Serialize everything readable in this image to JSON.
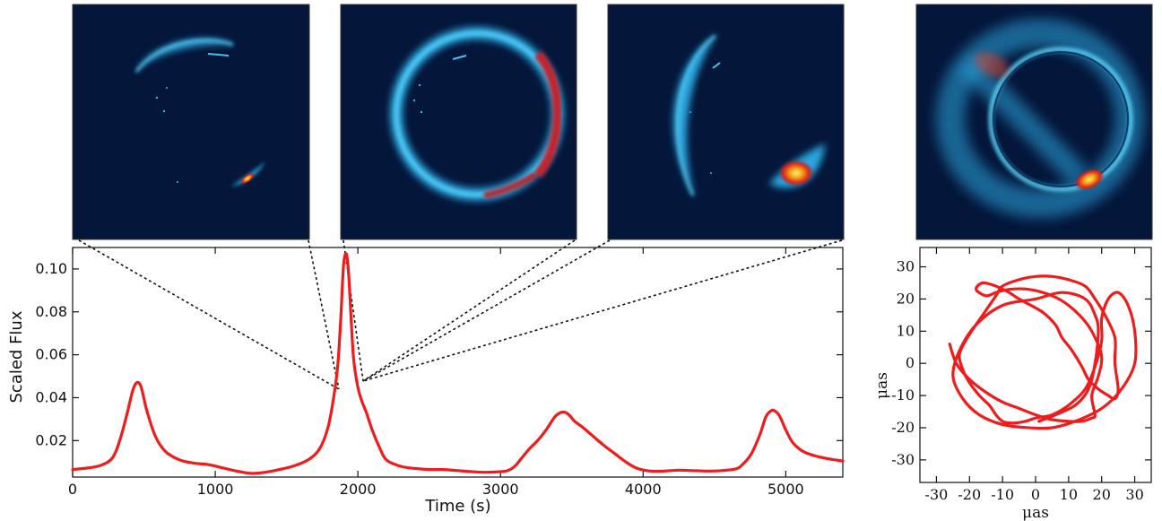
{
  "chart_data": [
    {
      "type": "line",
      "title": "",
      "xlabel": "Time (s)",
      "ylabel": "Scaled Flux",
      "xlim": [
        0,
        5400
      ],
      "ylim": [
        0.003,
        0.11
      ],
      "xticks": [
        0,
        1000,
        2000,
        3000,
        4000,
        5000
      ],
      "xtick_labels": [
        "0",
        "1000",
        "2000",
        "3000",
        "4000",
        "5000"
      ],
      "yticks": [
        0.02,
        0.04,
        0.06,
        0.08,
        0.1
      ],
      "ytick_labels": [
        "0.02",
        "0.04",
        "0.06",
        "0.08",
        "0.10"
      ],
      "grid": false,
      "series": [
        {
          "color": "#ee1c1c",
          "x": [
            0,
            100,
            200,
            280,
            330,
            380,
            420,
            450,
            480,
            520,
            580,
            650,
            750,
            850,
            950,
            1050,
            1150,
            1250,
            1350,
            1450,
            1550,
            1650,
            1730,
            1790,
            1830,
            1860,
            1880,
            1900,
            1920,
            1935,
            1950,
            1970,
            2000,
            2030,
            2060,
            2100,
            2150,
            2200,
            2300,
            2400,
            2500,
            2600,
            2700,
            2800,
            2900,
            3000,
            3050,
            3100,
            3150,
            3200,
            3260,
            3320,
            3380,
            3420,
            3450,
            3480,
            3520,
            3580,
            3650,
            3720,
            3800,
            3880,
            3960,
            4050,
            4150,
            4250,
            4350,
            4450,
            4550,
            4650,
            4700,
            4760,
            4820,
            4860,
            4900,
            4930,
            4960,
            5000,
            5050,
            5120,
            5200,
            5300,
            5400
          ],
          "y": [
            0.0065,
            0.0072,
            0.0085,
            0.012,
            0.02,
            0.032,
            0.043,
            0.047,
            0.045,
            0.034,
            0.022,
            0.015,
            0.011,
            0.0095,
            0.0088,
            0.0073,
            0.0058,
            0.0047,
            0.0052,
            0.0065,
            0.0082,
            0.011,
            0.016,
            0.026,
            0.04,
            0.056,
            0.077,
            0.102,
            0.107,
            0.098,
            0.08,
            0.058,
            0.045,
            0.038,
            0.033,
            0.025,
            0.017,
            0.011,
            0.008,
            0.007,
            0.0065,
            0.0065,
            0.006,
            0.0055,
            0.0052,
            0.0055,
            0.006,
            0.008,
            0.012,
            0.016,
            0.02,
            0.025,
            0.031,
            0.033,
            0.0332,
            0.032,
            0.029,
            0.026,
            0.022,
            0.018,
            0.014,
            0.01,
            0.007,
            0.0058,
            0.0058,
            0.0062,
            0.006,
            0.0058,
            0.006,
            0.0068,
            0.009,
            0.014,
            0.023,
            0.031,
            0.034,
            0.0335,
            0.031,
            0.025,
            0.019,
            0.015,
            0.013,
            0.0115,
            0.0105
          ]
        }
      ]
    },
    {
      "type": "line",
      "title": "",
      "xlabel": "μas",
      "ylabel": "μas",
      "xlim": [
        -35,
        35
      ],
      "ylim": [
        -37,
        36
      ],
      "xticks": [
        -30,
        -20,
        -10,
        0,
        10,
        20,
        30
      ],
      "xtick_labels": [
        "-30",
        "-20",
        "-10",
        "0",
        "10",
        "20",
        "30"
      ],
      "yticks": [
        -30,
        -20,
        -10,
        0,
        10,
        20,
        30
      ],
      "ytick_labels": [
        "-30",
        "-20",
        "-10",
        "0",
        "10",
        "20",
        "30"
      ],
      "grid": false,
      "series": [
        {
          "color": "#ee1c1c",
          "x": [
            -26,
            -24,
            -20,
            -15,
            -10,
            -5,
            0,
            5,
            10,
            14,
            17,
            18,
            17,
            19,
            20,
            18,
            15,
            10,
            5,
            -2,
            -8,
            -12,
            -15,
            -18,
            -16,
            -12,
            -8,
            -5,
            2,
            6,
            8,
            11,
            14,
            16,
            19,
            22,
            24,
            25,
            24,
            24,
            21,
            18,
            15,
            10,
            5,
            0,
            -5,
            -10,
            -12,
            -16,
            -20,
            -23,
            -22,
            -20,
            -17,
            -14,
            -12,
            -10,
            -8,
            -6,
            -3,
            0,
            5,
            10,
            15,
            18,
            20,
            20,
            22,
            25,
            28,
            30,
            30,
            26,
            20,
            12,
            5,
            -2,
            -10,
            -17,
            -22,
            -25,
            -23,
            -18,
            -10,
            0,
            8,
            15,
            18,
            19,
            18,
            16,
            12,
            6,
            1
          ],
          "y": [
            6,
            0,
            -5,
            -9,
            -12,
            -14,
            -16,
            -17.5,
            -18,
            -18,
            -17,
            -16,
            -10,
            -4,
            2,
            8,
            13,
            18,
            21,
            23,
            23,
            22,
            21,
            23,
            25,
            24,
            22,
            20,
            16,
            12,
            8,
            4,
            -1,
            -5,
            -8,
            -10,
            -11,
            -8,
            0,
            8,
            15,
            20,
            24,
            26,
            27,
            27,
            26,
            24,
            21,
            15,
            9,
            3,
            -2,
            -6,
            -10,
            -13,
            -16,
            -18,
            -18.5,
            -18.5,
            -18,
            -17,
            -16,
            -13,
            -8,
            -1,
            7,
            14,
            20,
            22,
            18,
            10,
            0,
            -8,
            -14,
            -18,
            -20,
            -20,
            -19,
            -16,
            -11,
            -4,
            4,
            12,
            18,
            20,
            22,
            20,
            15,
            10,
            0,
            -8,
            -13,
            -16,
            -18
          ]
        }
      ]
    }
  ],
  "colors": {
    "curve": "#ee1c1c",
    "image_background": "#04163a",
    "ring_blue": "#2aa6de",
    "hot_spot": "#e8421a",
    "dashed_connector": "#111111"
  },
  "icons": [
    "connector-dashed-lines"
  ]
}
